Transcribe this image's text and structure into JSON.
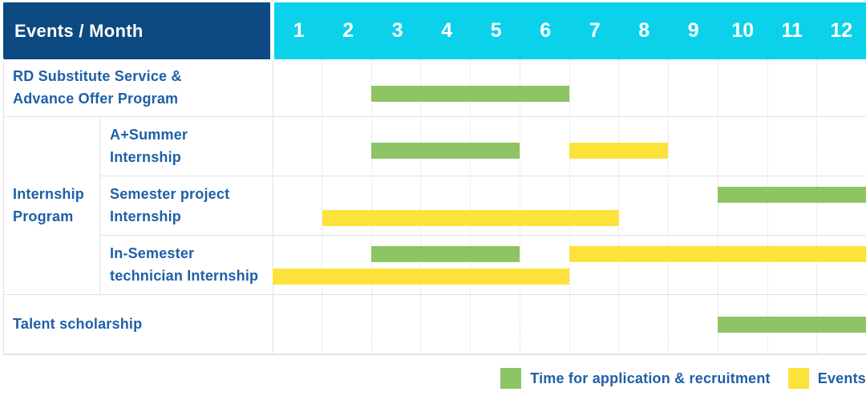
{
  "header": {
    "title": "Events / Month",
    "months": [
      "1",
      "2",
      "3",
      "4",
      "5",
      "6",
      "7",
      "8",
      "9",
      "10",
      "11",
      "12"
    ]
  },
  "group_cell": {
    "lines": [
      "Internship",
      "Program"
    ],
    "label": "Internship Program"
  },
  "colors": {
    "header_bg": "#0d4a81",
    "months_bg": "#0bd2ea",
    "header_text": "#ffffff",
    "bar_green": "#8dc464",
    "bar_yellow": "#fee23c",
    "label_text": "#1e5fa8",
    "grid_line": "#e2e2e2"
  },
  "chart_data": {
    "type": "gantt",
    "unit": "month",
    "x_range": [
      1,
      12
    ],
    "grid": "dashed-vertical",
    "rows": [
      {
        "id": "rd-substitute",
        "group": null,
        "label_lines": [
          "RD Substitute Service &",
          "Advance Offer Program"
        ],
        "bars": [
          {
            "kind": "application",
            "start_month": 3,
            "end_month": 6,
            "lane": "middle"
          }
        ]
      },
      {
        "id": "a-summer-internship",
        "group": "Internship Program",
        "label_lines": [
          "A+Summer",
          "Internship"
        ],
        "bars": [
          {
            "kind": "application",
            "start_month": 3,
            "end_month": 5,
            "lane": "middle"
          },
          {
            "kind": "event",
            "start_month": 7,
            "end_month": 8,
            "lane": "middle"
          }
        ]
      },
      {
        "id": "semester-project-internship",
        "group": "Internship Program",
        "label_lines": [
          "Semester project",
          "Internship"
        ],
        "bars": [
          {
            "kind": "application",
            "start_month": 10,
            "end_month": 12,
            "lane": "top"
          },
          {
            "kind": "event",
            "start_month": 2,
            "end_month": 7,
            "lane": "bottom"
          }
        ]
      },
      {
        "id": "in-semester-technician-internship",
        "group": "Internship Program",
        "label_lines": [
          "In-Semester",
          "technician Internship"
        ],
        "bars": [
          {
            "kind": "application",
            "start_month": 3,
            "end_month": 5,
            "lane": "top"
          },
          {
            "kind": "event",
            "start_month": 7,
            "end_month": 12,
            "lane": "top"
          },
          {
            "kind": "event",
            "start_month": 1,
            "end_month": 6,
            "lane": "bottom"
          }
        ]
      },
      {
        "id": "talent-scholarship",
        "group": null,
        "label_lines": [
          "Talent scholarship"
        ],
        "bars": [
          {
            "kind": "application",
            "start_month": 10,
            "end_month": 12,
            "lane": "middle"
          }
        ]
      }
    ],
    "legend": [
      {
        "kind": "application",
        "label": "Time for application & recruitment"
      },
      {
        "kind": "event",
        "label": "Events"
      }
    ]
  }
}
